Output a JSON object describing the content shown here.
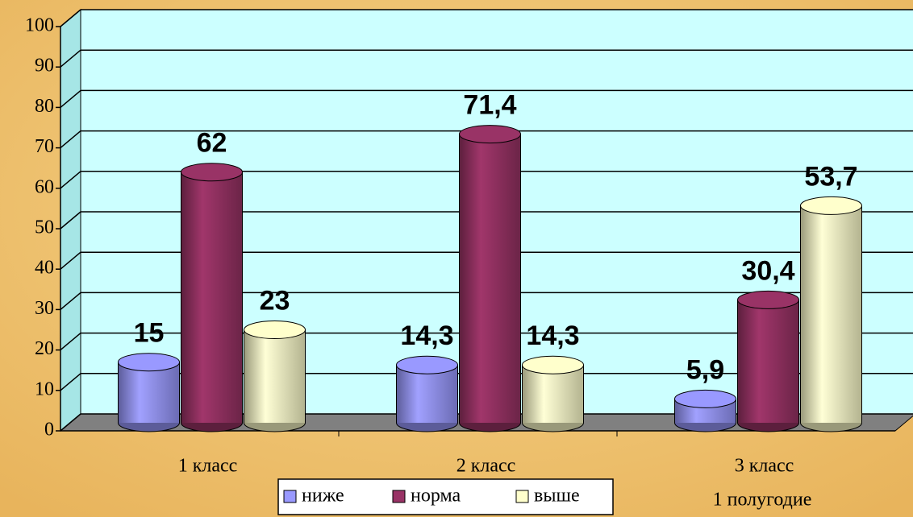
{
  "chart_data": {
    "type": "bar3d",
    "categories": [
      "1 класс",
      "2 класс",
      "3 класс"
    ],
    "series": [
      {
        "name": "ниже",
        "color": "#9999ff",
        "values": [
          15,
          14.3,
          5.9
        ],
        "value_labels": [
          "15",
          "14,3",
          "5,9"
        ]
      },
      {
        "name": "норма",
        "color": "#993366",
        "values": [
          62,
          71.4,
          30.4
        ],
        "value_labels": [
          "62",
          "71,4",
          "30,4"
        ]
      },
      {
        "name": "выше",
        "color": "#ffffcc",
        "values": [
          23,
          14.3,
          53.7
        ],
        "value_labels": [
          "23",
          "14,3",
          "53,7"
        ]
      }
    ],
    "annotation": "1 полугодие",
    "ylim": [
      0,
      100
    ],
    "yticks": [
      0,
      10,
      20,
      30,
      40,
      50,
      60,
      70,
      80,
      90,
      100
    ],
    "grid": true,
    "wall_color": "#ccffff",
    "floor_color": "#808080"
  }
}
